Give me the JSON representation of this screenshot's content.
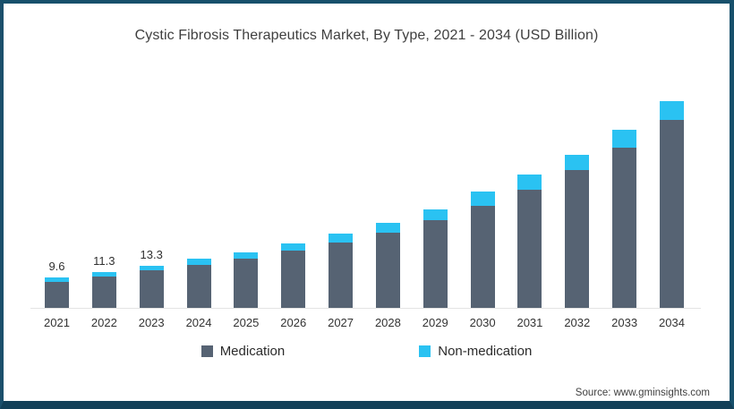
{
  "frame": {
    "border_color": "#17506B",
    "background": "#ffffff"
  },
  "title": "Cystic Fibrosis Therapeutics Market, By Type, 2021 - 2034 (USD Billion)",
  "legend": {
    "items": [
      {
        "label": "Medication",
        "color": "#566373"
      },
      {
        "label": "Non-medication",
        "color": "#2AC2F2"
      }
    ]
  },
  "source": "Source: www.gminsights.com",
  "chart_data": {
    "type": "bar",
    "stacked": true,
    "title": "Cystic Fibrosis Therapeutics Market, By Type, 2021 - 2034 (USD Billion)",
    "categories": [
      "2021",
      "2022",
      "2023",
      "2024",
      "2025",
      "2026",
      "2027",
      "2028",
      "2029",
      "2030",
      "2031",
      "2032",
      "2033",
      "2034"
    ],
    "series": [
      {
        "name": "Medication",
        "color": "#566373",
        "values": [
          8.3,
          9.8,
          11.7,
          13.6,
          15.5,
          17.9,
          20.5,
          23.8,
          27.5,
          32.1,
          37.2,
          43.4,
          50.3,
          59.1
        ]
      },
      {
        "name": "Non-medication",
        "color": "#2AC2F2",
        "values": [
          1.3,
          1.5,
          1.6,
          1.9,
          2.1,
          2.4,
          2.8,
          3.0,
          3.5,
          4.4,
          4.7,
          4.9,
          5.7,
          6.1
        ]
      }
    ],
    "totals": [
      9.6,
      11.3,
      13.3,
      15.5,
      17.6,
      20.3,
      23.3,
      26.8,
      31.0,
      36.5,
      41.9,
      48.3,
      56.0,
      65.2
    ],
    "value_labels": [
      "9.6",
      "11.3",
      "13.3",
      "",
      "",
      "",
      "",
      "",
      "",
      "",
      "",
      "",
      "",
      ""
    ],
    "xlabel": "",
    "ylabel": "",
    "ylim": [
      0,
      70
    ],
    "grid": false,
    "axis_line_color": "#e4e4e4",
    "legend_position": "bottom"
  }
}
